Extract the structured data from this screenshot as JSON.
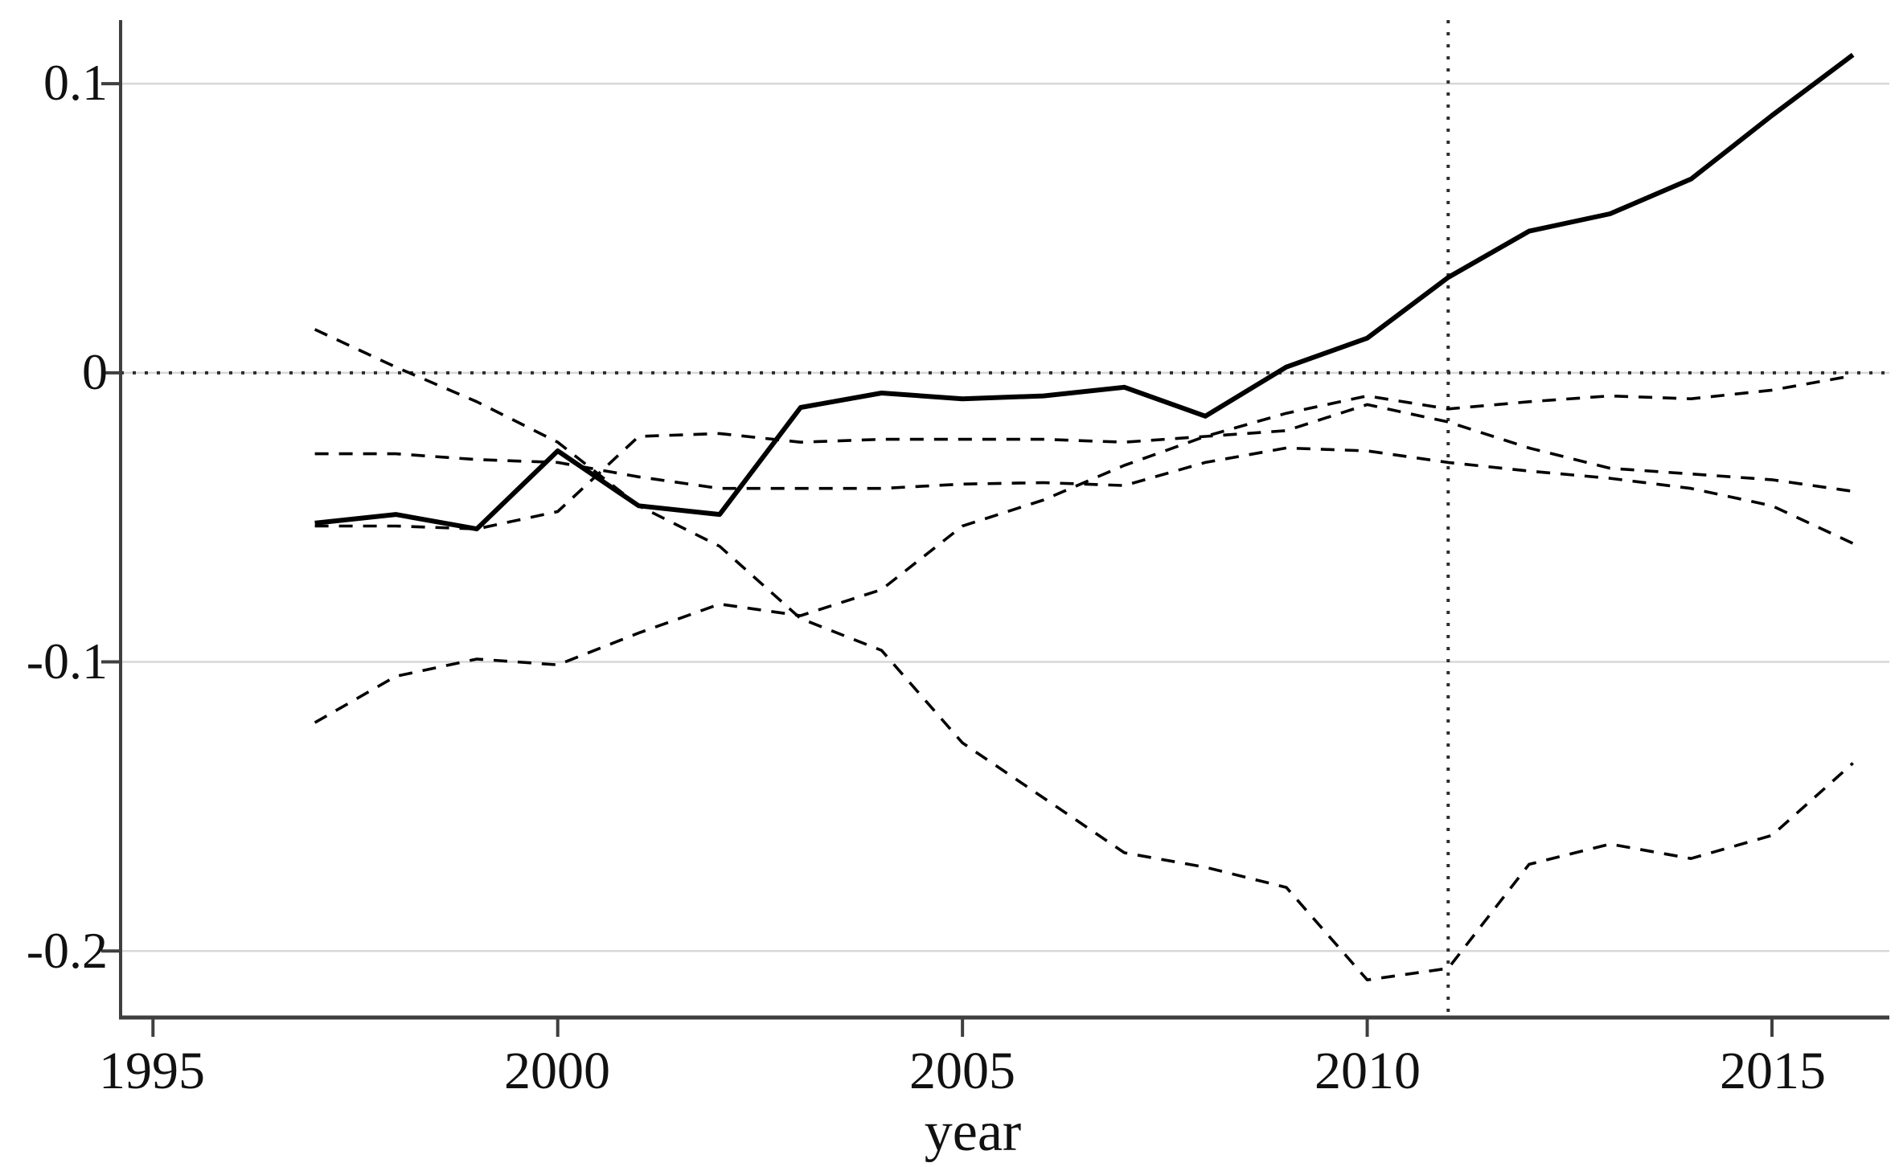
{
  "chart_data": {
    "type": "line",
    "title": "",
    "xlabel": "year",
    "ylabel": "",
    "x": [
      1997,
      1998,
      1999,
      2000,
      2001,
      2002,
      2003,
      2004,
      2005,
      2006,
      2007,
      2008,
      2009,
      2010,
      2011,
      2012,
      2013,
      2014,
      2015,
      2016
    ],
    "xlim": [
      1994.6,
      2016.45
    ],
    "ylim": [
      -0.223,
      0.122
    ],
    "xticks": [
      1995,
      2000,
      2005,
      2010,
      2015
    ],
    "yticks": [
      0.1,
      0,
      -0.1,
      -0.2
    ],
    "xtick_labels": [
      "1995",
      "2000",
      "2005",
      "2010",
      "2015"
    ],
    "ytick_labels": [
      "0.1",
      "0",
      "-0.1",
      "-0.2"
    ],
    "grid": "horizontal-light",
    "legend": "none",
    "reference_lines": {
      "horizontal_dotted_y": 0,
      "vertical_dotted_x": 2011
    },
    "series": [
      {
        "name": "dashed-steep-decline",
        "style": "dashed",
        "values": [
          0.015,
          0.002,
          -0.01,
          -0.024,
          -0.046,
          -0.06,
          -0.085,
          -0.096,
          -0.128,
          -0.147,
          -0.166,
          -0.171,
          -0.178,
          -0.21,
          -0.206,
          -0.17,
          -0.163,
          -0.168,
          -0.16,
          -0.135
        ]
      },
      {
        "name": "dashed-rising-to-zero",
        "style": "dashed",
        "values": [
          -0.121,
          -0.105,
          -0.099,
          -0.101,
          -0.09,
          -0.08,
          -0.084,
          -0.075,
          -0.053,
          -0.044,
          -0.032,
          -0.022,
          -0.014,
          -0.008,
          -0.0125,
          -0.01,
          -0.008,
          -0.009,
          -0.006,
          -0.001
        ]
      },
      {
        "name": "dashed-mid-upper",
        "style": "dashed",
        "values": [
          -0.028,
          -0.028,
          -0.03,
          -0.031,
          -0.036,
          -0.04,
          -0.04,
          -0.04,
          -0.0385,
          -0.038,
          -0.039,
          -0.031,
          -0.026,
          -0.027,
          -0.031,
          -0.034,
          -0.0365,
          -0.04,
          -0.046,
          -0.059
        ]
      },
      {
        "name": "dashed-mid-lower",
        "style": "dashed",
        "values": [
          -0.053,
          -0.053,
          -0.054,
          -0.048,
          -0.022,
          -0.021,
          -0.024,
          -0.023,
          -0.023,
          -0.023,
          -0.024,
          -0.022,
          -0.02,
          -0.011,
          -0.017,
          -0.026,
          -0.033,
          -0.035,
          -0.037,
          -0.041
        ]
      },
      {
        "name": "solid-main",
        "style": "solid",
        "values": [
          -0.052,
          -0.049,
          -0.054,
          -0.027,
          -0.046,
          -0.049,
          -0.012,
          -0.007,
          -0.009,
          -0.008,
          -0.005,
          -0.015,
          0.002,
          0.012,
          0.033,
          0.049,
          0.055,
          0.067,
          0.089,
          0.11
        ]
      }
    ],
    "colors": {
      "line": "#000000",
      "reference": "#2e2e2e",
      "axis": "#3f3f3f",
      "grid": "#d8d8d8",
      "background": "#ffffff"
    }
  }
}
